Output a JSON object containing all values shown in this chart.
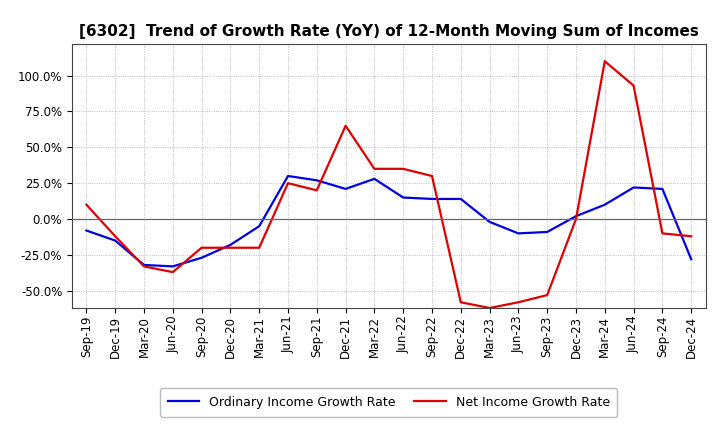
{
  "title": "[6302]  Trend of Growth Rate (YoY) of 12-Month Moving Sum of Incomes",
  "x_labels": [
    "Sep-19",
    "Dec-19",
    "Mar-20",
    "Jun-20",
    "Sep-20",
    "Dec-20",
    "Mar-21",
    "Jun-21",
    "Sep-21",
    "Dec-21",
    "Mar-22",
    "Jun-22",
    "Sep-22",
    "Dec-22",
    "Mar-23",
    "Jun-23",
    "Sep-23",
    "Dec-23",
    "Mar-24",
    "Jun-24",
    "Sep-24",
    "Dec-24"
  ],
  "ordinary_income": [
    -8,
    -15,
    -32,
    -33,
    -27,
    -18,
    -5,
    30,
    27,
    21,
    28,
    15,
    14,
    14,
    -2,
    -10,
    -9,
    2,
    10,
    22,
    21,
    -28
  ],
  "net_income": [
    10,
    -12,
    -33,
    -37,
    -20,
    -20,
    -20,
    25,
    20,
    65,
    35,
    35,
    30,
    -58,
    -62,
    -58,
    -53,
    0,
    110,
    93,
    -10,
    -12
  ],
  "ylim": [
    -62,
    122
  ],
  "yticks": [
    -50,
    -25,
    0,
    25,
    50,
    75,
    100
  ],
  "ordinary_color": "#0000dd",
  "net_color": "#dd0000",
  "legend_ordinary": "Ordinary Income Growth Rate",
  "legend_net": "Net Income Growth Rate",
  "background_color": "#ffffff",
  "grid_color": "#888888",
  "title_fontsize": 11,
  "tick_fontsize": 8.5,
  "legend_fontsize": 9
}
